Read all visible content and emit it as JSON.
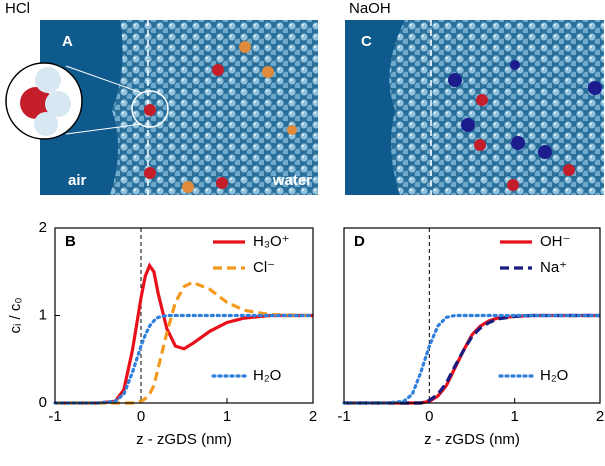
{
  "images": [
    {
      "title": "HCl",
      "label": "A",
      "annotations": [
        "air",
        "water"
      ]
    },
    {
      "title": "NaOH",
      "label": "C"
    }
  ],
  "chart_data": [
    {
      "type": "line",
      "panel_label": "B",
      "y_label": "cᵢ / c₀",
      "x_label": "z - zGDS (nm)",
      "xlim": [
        -1,
        2
      ],
      "ylim": [
        0,
        2
      ],
      "xticks": [
        -1,
        0,
        1,
        2
      ],
      "yticks": [
        0,
        1,
        2
      ],
      "vline": 0,
      "x": [
        -1,
        -0.5,
        -0.3,
        -0.2,
        -0.1,
        0,
        0.05,
        0.1,
        0.15,
        0.2,
        0.3,
        0.4,
        0.5,
        0.6,
        0.8,
        1.0,
        1.2,
        1.5,
        2.0
      ],
      "series": [
        {
          "name": "H₃O⁺",
          "color": "#e8101a",
          "style": "solid",
          "values": [
            0,
            0,
            0.02,
            0.15,
            0.6,
            1.2,
            1.45,
            1.57,
            1.5,
            1.25,
            0.85,
            0.65,
            0.62,
            0.68,
            0.82,
            0.92,
            0.97,
            1.0,
            1.0
          ]
        },
        {
          "name": "Cl⁻",
          "color": "#f39a1e",
          "style": "dashed",
          "values": [
            0,
            0,
            0,
            0,
            0,
            0.02,
            0.05,
            0.1,
            0.2,
            0.4,
            0.8,
            1.15,
            1.33,
            1.38,
            1.3,
            1.15,
            1.06,
            1.01,
            1.0
          ]
        },
        {
          "name": "H₂O",
          "color": "#2f7fdc",
          "style": "dotted",
          "values": [
            0,
            0,
            0.02,
            0.1,
            0.35,
            0.65,
            0.78,
            0.88,
            0.94,
            0.98,
            1.0,
            1.0,
            1.0,
            1.0,
            1.0,
            1.0,
            1.0,
            1.0,
            1.0
          ]
        }
      ]
    },
    {
      "type": "line",
      "panel_label": "D",
      "x_label": "z - zGDS (nm)",
      "xlim": [
        -1,
        2
      ],
      "ylim": [
        0,
        2
      ],
      "xticks": [
        -1,
        0,
        1,
        2
      ],
      "vline": 0,
      "x": [
        -1,
        -0.5,
        -0.3,
        -0.2,
        -0.1,
        0,
        0.1,
        0.2,
        0.3,
        0.4,
        0.5,
        0.6,
        0.7,
        0.8,
        1.0,
        1.2,
        1.5,
        2.0
      ],
      "series": [
        {
          "name": "OH⁻",
          "color": "#e8101a",
          "style": "solid",
          "values": [
            0,
            0,
            0,
            0,
            0,
            0.02,
            0.08,
            0.2,
            0.4,
            0.6,
            0.78,
            0.88,
            0.94,
            0.97,
            0.99,
            1.0,
            1.0,
            1.0
          ]
        },
        {
          "name": "Na⁺",
          "color": "#1a1a80",
          "style": "dashed",
          "values": [
            0,
            0,
            0,
            0,
            0,
            0.03,
            0.1,
            0.23,
            0.42,
            0.6,
            0.76,
            0.86,
            0.92,
            0.96,
            0.99,
            1.0,
            1.0,
            1.0
          ]
        },
        {
          "name": "H₂O",
          "color": "#2f7fdc",
          "style": "dotted",
          "values": [
            0,
            0,
            0.02,
            0.1,
            0.35,
            0.65,
            0.88,
            0.98,
            1.0,
            1.0,
            1.0,
            1.0,
            1.0,
            1.0,
            1.0,
            1.0,
            1.0,
            1.0
          ]
        }
      ]
    }
  ]
}
